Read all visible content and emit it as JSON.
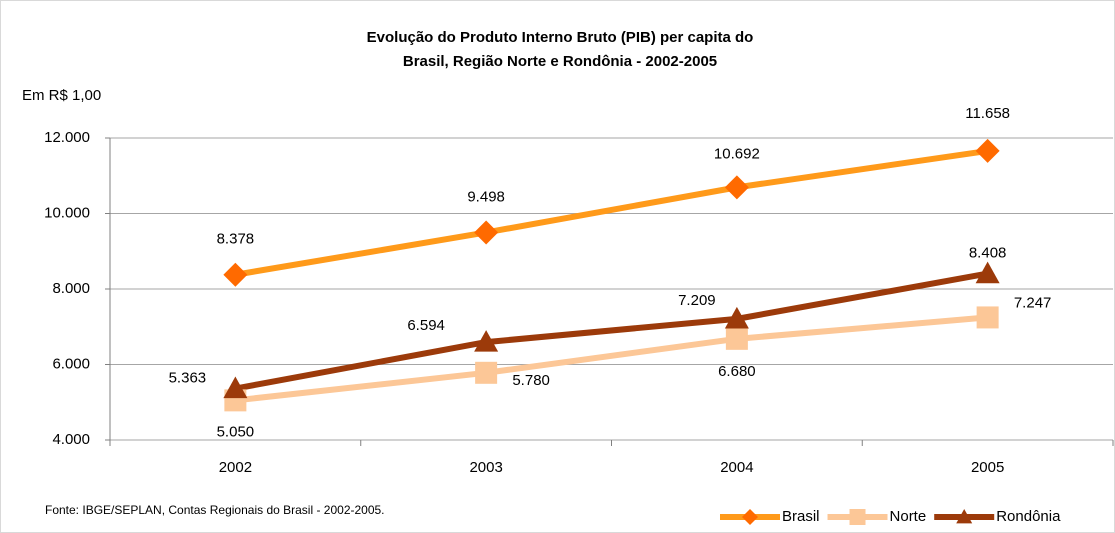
{
  "chart_data": {
    "type": "line",
    "title": [
      "Evolução do Produto Interno Bruto (PIB) per capita do",
      "Brasil, Região Norte e Rondônia - 2002-2005"
    ],
    "y_label": "Em R$ 1,00",
    "source": "Fonte:  IBGE/SEPLAN, Contas Regionais do Brasil - 2002-2005.",
    "categories": [
      "2002",
      "2003",
      "2004",
      "2005"
    ],
    "ylim": [
      4000,
      12000
    ],
    "yticks": [
      {
        "value": 4000,
        "label": "4.000"
      },
      {
        "value": 6000,
        "label": "6.000"
      },
      {
        "value": 8000,
        "label": "8.000"
      },
      {
        "value": 10000,
        "label": "10.000"
      },
      {
        "value": 12000,
        "label": "12.000"
      }
    ],
    "grid": true,
    "legend": "bottom-right",
    "series": [
      {
        "name": "Brasil",
        "color": "#ff9a1a",
        "marker_color": "#ff6a00",
        "marker": "diamond",
        "values": [
          8378,
          9498,
          10692,
          11658
        ],
        "value_labels": [
          "8.378",
          "9.498",
          "10.692",
          "11.658"
        ]
      },
      {
        "name": "Norte",
        "color": "#fcc797",
        "marker_color": "#fcc797",
        "marker": "square",
        "values": [
          5050,
          5780,
          6680,
          7247
        ],
        "value_labels": [
          "5.050",
          "5.780",
          "6.680",
          "7.247"
        ]
      },
      {
        "name": "Rondônia",
        "color": "#9c3a0a",
        "marker_color": "#9c3a0a",
        "marker": "triangle",
        "values": [
          5363,
          6594,
          7209,
          8408
        ],
        "value_labels": [
          "5.363",
          "6.594",
          "7.209",
          "8.408"
        ]
      }
    ]
  }
}
